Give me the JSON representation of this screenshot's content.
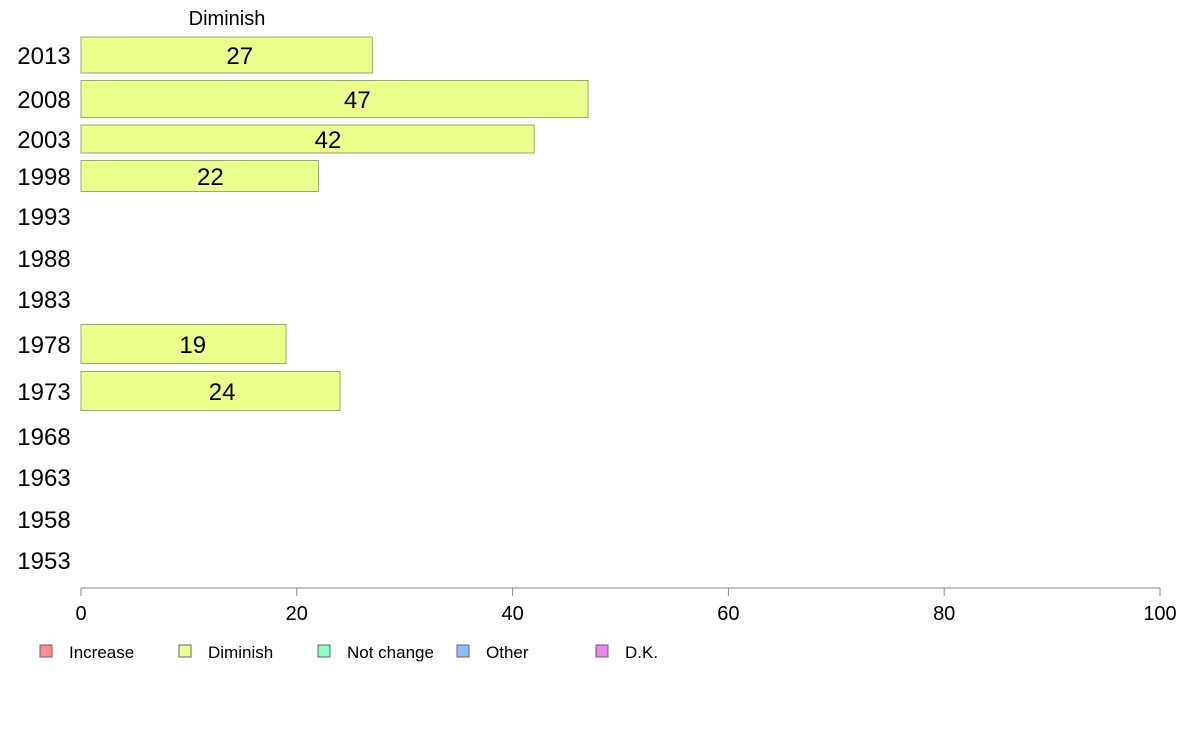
{
  "chart_data": {
    "type": "bar",
    "orientation": "horizontal",
    "panel_title": "Diminish",
    "categories": [
      "2013",
      "2008",
      "2003",
      "1998",
      "1993",
      "1988",
      "1983",
      "1978",
      "1973",
      "1968",
      "1963",
      "1958",
      "1953"
    ],
    "series": [
      {
        "name": "Diminish",
        "values": [
          27,
          47,
          42,
          22,
          null,
          null,
          null,
          19,
          24,
          null,
          null,
          null,
          null
        ]
      }
    ],
    "xlim": [
      0,
      100
    ],
    "xticks": [
      0,
      20,
      40,
      60,
      80,
      100
    ],
    "grid": false,
    "legend": {
      "placement": "bottom",
      "items": [
        {
          "label": "Increase",
          "color": "#ff8c8c"
        },
        {
          "label": "Diminish",
          "color": "#eaff8c"
        },
        {
          "label": "Not change",
          "color": "#8cffbe"
        },
        {
          "label": "Other",
          "color": "#8cbeff"
        },
        {
          "label": "D.K.",
          "color": "#ee82ee"
        }
      ]
    },
    "bar_color": "#eaff8c",
    "bar_stroke": "#9aa86a"
  }
}
